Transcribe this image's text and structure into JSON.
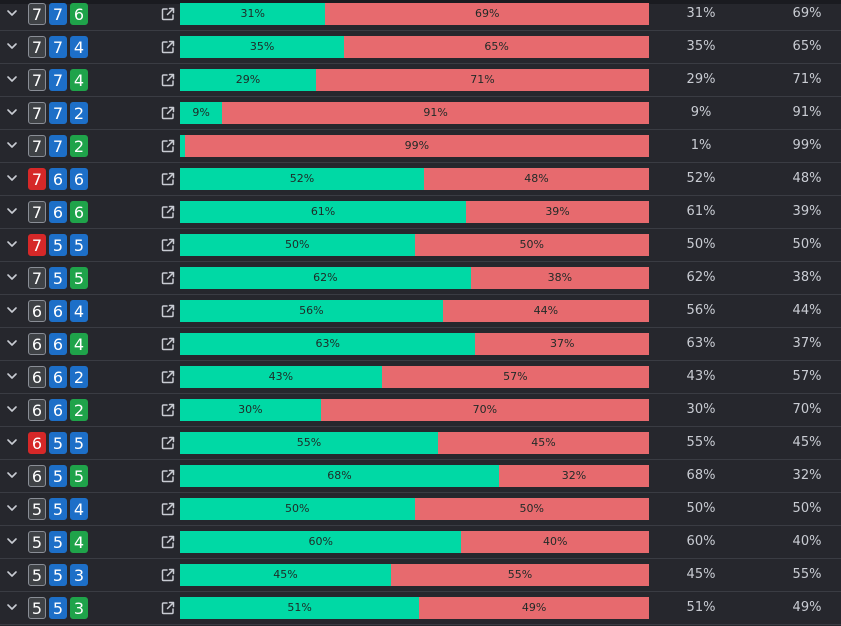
{
  "colors": {
    "background": "#26272d",
    "row_border": "#3a3c43",
    "bar_green": "#00d9a5",
    "bar_red": "#e76a6e",
    "box_gray": "#3f4246",
    "box_gray_border": "#8a8e96",
    "box_blue": "#1d6fc8",
    "box_green": "#1fa34a",
    "box_red": "#d62828",
    "text": "#c9ccd3"
  },
  "icons": {
    "expand": "chevron-down-icon",
    "open": "external-link-icon"
  },
  "rows": [
    {
      "digits": [
        {
          "value": "7",
          "color": "gray"
        },
        {
          "value": "7",
          "color": "blue"
        },
        {
          "value": "6",
          "color": "green"
        }
      ],
      "a": 31,
      "a_label": "31%",
      "b_label": "69%"
    },
    {
      "digits": [
        {
          "value": "7",
          "color": "gray"
        },
        {
          "value": "7",
          "color": "blue"
        },
        {
          "value": "4",
          "color": "blue"
        }
      ],
      "a": 35,
      "a_label": "35%",
      "b_label": "65%"
    },
    {
      "digits": [
        {
          "value": "7",
          "color": "gray"
        },
        {
          "value": "7",
          "color": "blue"
        },
        {
          "value": "4",
          "color": "green"
        }
      ],
      "a": 29,
      "a_label": "29%",
      "b_label": "71%"
    },
    {
      "digits": [
        {
          "value": "7",
          "color": "gray"
        },
        {
          "value": "7",
          "color": "blue"
        },
        {
          "value": "2",
          "color": "blue"
        }
      ],
      "a": 9,
      "a_label": "9%",
      "b_label": "91%"
    },
    {
      "digits": [
        {
          "value": "7",
          "color": "gray"
        },
        {
          "value": "7",
          "color": "blue"
        },
        {
          "value": "2",
          "color": "green"
        }
      ],
      "a": 1,
      "a_label": "",
      "b_label": "99%",
      "a_text": "1%"
    },
    {
      "digits": [
        {
          "value": "7",
          "color": "red"
        },
        {
          "value": "6",
          "color": "blue"
        },
        {
          "value": "6",
          "color": "blue"
        }
      ],
      "a": 52,
      "a_label": "52%",
      "b_label": "48%"
    },
    {
      "digits": [
        {
          "value": "7",
          "color": "gray"
        },
        {
          "value": "6",
          "color": "blue"
        },
        {
          "value": "6",
          "color": "green"
        }
      ],
      "a": 61,
      "a_label": "61%",
      "b_label": "39%"
    },
    {
      "digits": [
        {
          "value": "7",
          "color": "red"
        },
        {
          "value": "5",
          "color": "blue"
        },
        {
          "value": "5",
          "color": "blue"
        }
      ],
      "a": 50,
      "a_label": "50%",
      "b_label": "50%"
    },
    {
      "digits": [
        {
          "value": "7",
          "color": "gray"
        },
        {
          "value": "5",
          "color": "blue"
        },
        {
          "value": "5",
          "color": "green"
        }
      ],
      "a": 62,
      "a_label": "62%",
      "b_label": "38%"
    },
    {
      "digits": [
        {
          "value": "6",
          "color": "gray"
        },
        {
          "value": "6",
          "color": "blue"
        },
        {
          "value": "4",
          "color": "blue"
        }
      ],
      "a": 56,
      "a_label": "56%",
      "b_label": "44%"
    },
    {
      "digits": [
        {
          "value": "6",
          "color": "gray"
        },
        {
          "value": "6",
          "color": "blue"
        },
        {
          "value": "4",
          "color": "green"
        }
      ],
      "a": 63,
      "a_label": "63%",
      "b_label": "37%"
    },
    {
      "digits": [
        {
          "value": "6",
          "color": "gray"
        },
        {
          "value": "6",
          "color": "blue"
        },
        {
          "value": "2",
          "color": "blue"
        }
      ],
      "a": 43,
      "a_label": "43%",
      "b_label": "57%"
    },
    {
      "digits": [
        {
          "value": "6",
          "color": "gray"
        },
        {
          "value": "6",
          "color": "blue"
        },
        {
          "value": "2",
          "color": "green"
        }
      ],
      "a": 30,
      "a_label": "30%",
      "b_label": "70%"
    },
    {
      "digits": [
        {
          "value": "6",
          "color": "red"
        },
        {
          "value": "5",
          "color": "blue"
        },
        {
          "value": "5",
          "color": "blue"
        }
      ],
      "a": 55,
      "a_label": "55%",
      "b_label": "45%"
    },
    {
      "digits": [
        {
          "value": "6",
          "color": "gray"
        },
        {
          "value": "5",
          "color": "blue"
        },
        {
          "value": "5",
          "color": "green"
        }
      ],
      "a": 68,
      "a_label": "68%",
      "b_label": "32%"
    },
    {
      "digits": [
        {
          "value": "5",
          "color": "gray"
        },
        {
          "value": "5",
          "color": "blue"
        },
        {
          "value": "4",
          "color": "blue"
        }
      ],
      "a": 50,
      "a_label": "50%",
      "b_label": "50%"
    },
    {
      "digits": [
        {
          "value": "5",
          "color": "gray"
        },
        {
          "value": "5",
          "color": "blue"
        },
        {
          "value": "4",
          "color": "green"
        }
      ],
      "a": 60,
      "a_label": "60%",
      "b_label": "40%"
    },
    {
      "digits": [
        {
          "value": "5",
          "color": "gray"
        },
        {
          "value": "5",
          "color": "blue"
        },
        {
          "value": "3",
          "color": "blue"
        }
      ],
      "a": 45,
      "a_label": "45%",
      "b_label": "55%"
    },
    {
      "digits": [
        {
          "value": "5",
          "color": "gray"
        },
        {
          "value": "5",
          "color": "blue"
        },
        {
          "value": "3",
          "color": "green"
        }
      ],
      "a": 51,
      "a_label": "51%",
      "b_label": "49%"
    }
  ]
}
